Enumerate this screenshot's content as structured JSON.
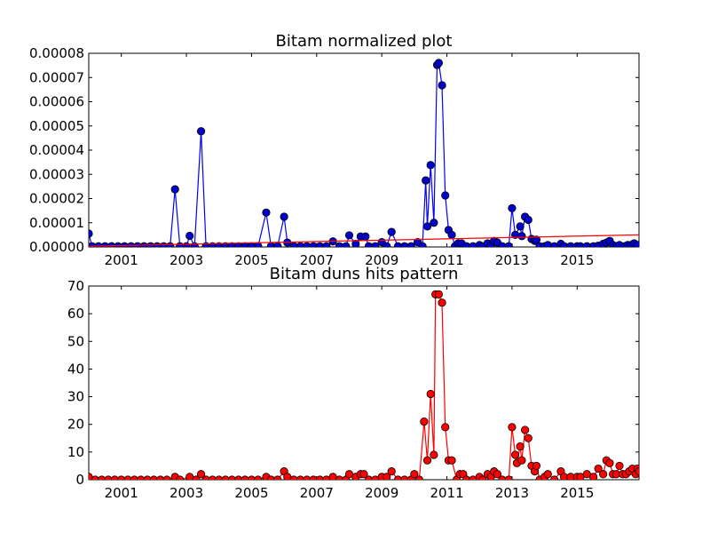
{
  "chart_data": [
    {
      "type": "line",
      "title": "Bitam normalized plot",
      "xlabel": "",
      "ylabel": "",
      "xlim": [
        2000.0,
        2016.9
      ],
      "ylim": [
        0,
        8e-05
      ],
      "x_ticks": [
        "2001",
        "2003",
        "2005",
        "2007",
        "2009",
        "2011",
        "2013",
        "2015"
      ],
      "y_ticks": [
        "0.00000",
        "0.00001",
        "0.00002",
        "0.00003",
        "0.00004",
        "0.00005",
        "0.00006",
        "0.00007",
        "0.00008"
      ],
      "grid": false,
      "legend": "none",
      "colors": {
        "series": "#0000ff",
        "marker": "#0000cc",
        "trend": "#ff0000"
      },
      "series": [
        {
          "values": [
            [
              2000.0,
              5.5e-06
            ],
            [
              2000.1,
              3e-07
            ],
            [
              2000.3,
              3e-07
            ],
            [
              2000.5,
              3e-07
            ],
            [
              2000.7,
              3e-07
            ],
            [
              2000.9,
              3e-07
            ],
            [
              2001.1,
              3e-07
            ],
            [
              2001.3,
              3e-07
            ],
            [
              2001.5,
              3e-07
            ],
            [
              2001.7,
              3e-07
            ],
            [
              2001.9,
              3e-07
            ],
            [
              2002.1,
              3e-07
            ],
            [
              2002.3,
              3e-07
            ],
            [
              2002.5,
              3e-07
            ],
            [
              2002.65,
              2.38e-05
            ],
            [
              2002.8,
              3e-07
            ],
            [
              2003.0,
              3e-07
            ],
            [
              2003.1,
              4.6e-06
            ],
            [
              2003.25,
              3e-07
            ],
            [
              2003.45,
              4.78e-05
            ],
            [
              2003.6,
              3e-07
            ],
            [
              2003.8,
              3e-07
            ],
            [
              2004.0,
              3e-07
            ],
            [
              2004.2,
              3e-07
            ],
            [
              2004.4,
              3e-07
            ],
            [
              2004.6,
              3e-07
            ],
            [
              2004.8,
              3e-07
            ],
            [
              2005.0,
              3e-07
            ],
            [
              2005.2,
              3e-07
            ],
            [
              2005.45,
              1.42e-05
            ],
            [
              2005.6,
              3e-07
            ],
            [
              2005.8,
              3e-07
            ],
            [
              2006.0,
              1.25e-05
            ],
            [
              2006.1,
              1.8e-06
            ],
            [
              2006.3,
              3e-07
            ],
            [
              2006.5,
              3e-07
            ],
            [
              2006.7,
              3e-07
            ],
            [
              2006.9,
              3e-07
            ],
            [
              2007.1,
              3e-07
            ],
            [
              2007.3,
              3e-07
            ],
            [
              2007.5,
              2.3e-06
            ],
            [
              2007.7,
              3e-07
            ],
            [
              2007.9,
              3e-07
            ],
            [
              2008.0,
              4.8e-06
            ],
            [
              2008.2,
              1.3e-06
            ],
            [
              2008.35,
              4.3e-06
            ],
            [
              2008.5,
              4.3e-06
            ],
            [
              2008.6,
              3e-07
            ],
            [
              2008.8,
              3e-07
            ],
            [
              2009.0,
              2e-06
            ],
            [
              2009.15,
              3e-07
            ],
            [
              2009.3,
              6.2e-06
            ],
            [
              2009.5,
              3e-07
            ],
            [
              2009.7,
              3e-07
            ],
            [
              2009.9,
              3e-07
            ],
            [
              2010.1,
              2e-06
            ],
            [
              2010.25,
              3e-07
            ],
            [
              2010.35,
              2.75e-05
            ],
            [
              2010.4,
              8.5e-06
            ],
            [
              2010.5,
              3.38e-05
            ],
            [
              2010.6,
              1e-05
            ],
            [
              2010.7,
              7.52e-05
            ],
            [
              2010.75,
              7.6e-05
            ],
            [
              2010.85,
              6.68e-05
            ],
            [
              2010.95,
              2.13e-05
            ],
            [
              2011.05,
              7e-06
            ],
            [
              2011.15,
              5e-06
            ],
            [
              2011.25,
              3e-07
            ],
            [
              2011.35,
              1.5e-06
            ],
            [
              2011.45,
              1.5e-06
            ],
            [
              2011.6,
              3e-07
            ],
            [
              2011.8,
              3e-07
            ],
            [
              2012.0,
              8e-07
            ],
            [
              2012.1,
              3e-07
            ],
            [
              2012.25,
              1.5e-06
            ],
            [
              2012.35,
              3e-07
            ],
            [
              2012.45,
              2.5e-06
            ],
            [
              2012.55,
              1.8e-06
            ],
            [
              2012.7,
              3e-07
            ],
            [
              2012.9,
              3e-07
            ],
            [
              2013.0,
              1.6e-05
            ],
            [
              2013.1,
              5e-06
            ],
            [
              2013.25,
              8.5e-06
            ],
            [
              2013.3,
              4.5e-06
            ],
            [
              2013.4,
              1.25e-05
            ],
            [
              2013.5,
              1.12e-05
            ],
            [
              2013.6,
              3.3e-06
            ],
            [
              2013.7,
              2.5e-06
            ],
            [
              2013.75,
              3e-06
            ],
            [
              2013.85,
              3e-07
            ],
            [
              2014.0,
              3e-07
            ],
            [
              2014.1,
              8e-07
            ],
            [
              2014.3,
              3e-07
            ],
            [
              2014.5,
              1.3e-06
            ],
            [
              2014.6,
              3e-07
            ],
            [
              2014.8,
              3e-07
            ],
            [
              2015.0,
              3e-07
            ],
            [
              2015.1,
              3e-07
            ],
            [
              2015.3,
              3e-07
            ],
            [
              2015.5,
              3e-07
            ],
            [
              2015.65,
              5e-07
            ],
            [
              2015.8,
              1.3e-06
            ],
            [
              2015.9,
              1.8e-06
            ],
            [
              2016.0,
              2.5e-06
            ],
            [
              2016.1,
              8e-07
            ],
            [
              2016.2,
              3e-07
            ],
            [
              2016.3,
              8e-07
            ],
            [
              2016.45,
              3e-07
            ],
            [
              2016.55,
              8e-07
            ],
            [
              2016.65,
              8e-07
            ],
            [
              2016.75,
              1.5e-06
            ],
            [
              2016.85,
              8e-07
            ]
          ]
        }
      ],
      "trend_line": {
        "x": [
          2000.0,
          2016.9
        ],
        "y": [
          3e-07,
          5e-06
        ]
      }
    },
    {
      "type": "line",
      "title": "Bitam duns hits pattern",
      "xlabel": "",
      "ylabel": "",
      "xlim": [
        2000.0,
        2016.9
      ],
      "ylim": [
        0,
        70
      ],
      "x_ticks": [
        "2001",
        "2003",
        "2005",
        "2007",
        "2009",
        "2011",
        "2013",
        "2015"
      ],
      "y_ticks": [
        "0",
        "10",
        "20",
        "30",
        "40",
        "50",
        "60",
        "70"
      ],
      "grid": false,
      "legend": "none",
      "colors": {
        "series": "#ff0000",
        "marker": "#ff0000"
      },
      "series": [
        {
          "values": [
            [
              2000.0,
              1
            ],
            [
              2000.2,
              0
            ],
            [
              2000.4,
              0
            ],
            [
              2000.6,
              0
            ],
            [
              2000.8,
              0
            ],
            [
              2001.0,
              0
            ],
            [
              2001.2,
              0
            ],
            [
              2001.4,
              0
            ],
            [
              2001.6,
              0
            ],
            [
              2001.8,
              0
            ],
            [
              2002.0,
              0
            ],
            [
              2002.2,
              0
            ],
            [
              2002.4,
              0
            ],
            [
              2002.65,
              1
            ],
            [
              2002.8,
              0
            ],
            [
              2003.1,
              1
            ],
            [
              2003.3,
              0
            ],
            [
              2003.45,
              2
            ],
            [
              2003.6,
              0
            ],
            [
              2003.8,
              0
            ],
            [
              2004.0,
              0
            ],
            [
              2004.2,
              0
            ],
            [
              2004.4,
              0
            ],
            [
              2004.6,
              0
            ],
            [
              2004.8,
              0
            ],
            [
              2005.0,
              0
            ],
            [
              2005.2,
              0
            ],
            [
              2005.45,
              1
            ],
            [
              2005.6,
              0
            ],
            [
              2005.8,
              0
            ],
            [
              2006.0,
              3
            ],
            [
              2006.1,
              1
            ],
            [
              2006.3,
              0
            ],
            [
              2006.5,
              0
            ],
            [
              2006.7,
              0
            ],
            [
              2006.9,
              0
            ],
            [
              2007.1,
              0
            ],
            [
              2007.3,
              0
            ],
            [
              2007.5,
              1
            ],
            [
              2007.7,
              0
            ],
            [
              2007.9,
              0
            ],
            [
              2008.0,
              2
            ],
            [
              2008.2,
              1
            ],
            [
              2008.35,
              2
            ],
            [
              2008.45,
              2
            ],
            [
              2008.6,
              0
            ],
            [
              2008.8,
              0
            ],
            [
              2009.0,
              1
            ],
            [
              2009.15,
              1
            ],
            [
              2009.3,
              3
            ],
            [
              2009.5,
              0
            ],
            [
              2009.7,
              0
            ],
            [
              2009.9,
              0
            ],
            [
              2010.0,
              2
            ],
            [
              2010.15,
              0
            ],
            [
              2010.3,
              21
            ],
            [
              2010.4,
              7
            ],
            [
              2010.5,
              31
            ],
            [
              2010.6,
              9
            ],
            [
              2010.65,
              67
            ],
            [
              2010.75,
              67
            ],
            [
              2010.85,
              64
            ],
            [
              2010.95,
              19
            ],
            [
              2011.05,
              7
            ],
            [
              2011.15,
              7
            ],
            [
              2011.3,
              0
            ],
            [
              2011.4,
              2
            ],
            [
              2011.5,
              2
            ],
            [
              2011.6,
              0
            ],
            [
              2011.8,
              0
            ],
            [
              2012.0,
              1
            ],
            [
              2012.1,
              0
            ],
            [
              2012.25,
              2
            ],
            [
              2012.35,
              1
            ],
            [
              2012.45,
              3
            ],
            [
              2012.55,
              2
            ],
            [
              2012.7,
              0
            ],
            [
              2012.9,
              0
            ],
            [
              2013.0,
              19
            ],
            [
              2013.1,
              9
            ],
            [
              2013.15,
              6
            ],
            [
              2013.25,
              12
            ],
            [
              2013.3,
              7
            ],
            [
              2013.4,
              18
            ],
            [
              2013.5,
              15
            ],
            [
              2013.6,
              5
            ],
            [
              2013.7,
              3
            ],
            [
              2013.75,
              5
            ],
            [
              2013.85,
              0
            ],
            [
              2014.0,
              1
            ],
            [
              2014.1,
              2
            ],
            [
              2014.3,
              0
            ],
            [
              2014.5,
              3
            ],
            [
              2014.6,
              1
            ],
            [
              2014.8,
              1
            ],
            [
              2015.0,
              1
            ],
            [
              2015.1,
              1
            ],
            [
              2015.3,
              2
            ],
            [
              2015.5,
              1
            ],
            [
              2015.65,
              4
            ],
            [
              2015.8,
              2
            ],
            [
              2015.9,
              7
            ],
            [
              2016.0,
              6
            ],
            [
              2016.1,
              2
            ],
            [
              2016.2,
              2
            ],
            [
              2016.3,
              5
            ],
            [
              2016.4,
              2
            ],
            [
              2016.5,
              2
            ],
            [
              2016.6,
              3
            ],
            [
              2016.7,
              4
            ],
            [
              2016.8,
              2
            ],
            [
              2016.85,
              4
            ],
            [
              2016.9,
              3
            ]
          ]
        }
      ]
    }
  ]
}
